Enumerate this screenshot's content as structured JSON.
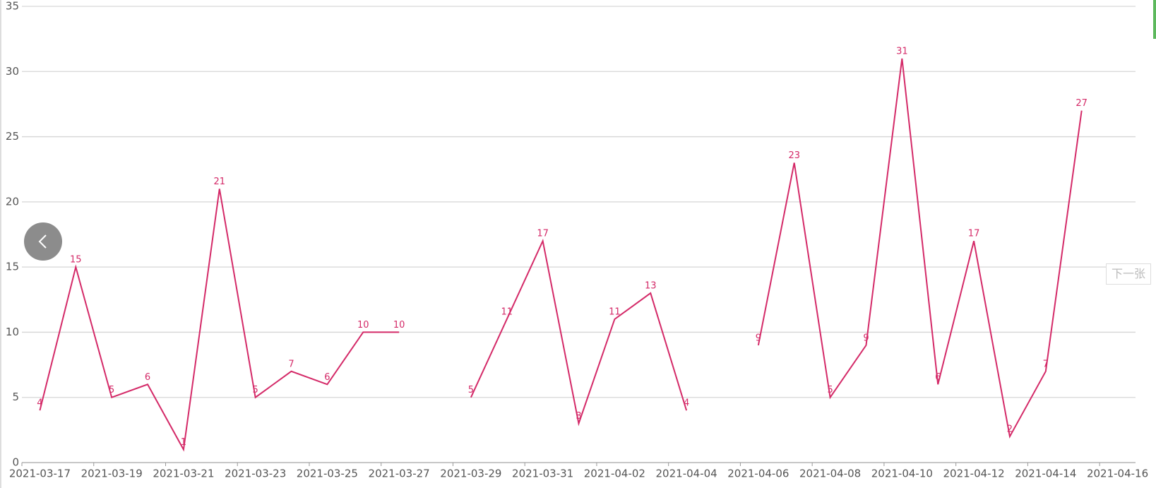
{
  "chart_data": {
    "type": "line",
    "categories": [
      "2021-03-17",
      null,
      "2021-03-19",
      null,
      "2021-03-21",
      null,
      "2021-03-23",
      null,
      "2021-03-25",
      null,
      "2021-03-27",
      null,
      "2021-03-29",
      null,
      "2021-03-31",
      null,
      "2021-04-02",
      null,
      "2021-04-04",
      null,
      "2021-04-06",
      null,
      "2021-04-08",
      null,
      "2021-04-10",
      null,
      "2021-04-12",
      null,
      "2021-04-14",
      null,
      "2021-04-16"
    ],
    "values": [
      4,
      15,
      5,
      6,
      1,
      21,
      5,
      7,
      6,
      10,
      10,
      null,
      5,
      11,
      17,
      3,
      11,
      13,
      4,
      null,
      9,
      23,
      5,
      9,
      31,
      6,
      17,
      2,
      7,
      27,
      null
    ],
    "color": "#d42a68",
    "ylim": [
      0,
      35
    ],
    "yticks": [
      0,
      5,
      10,
      15,
      20,
      25,
      30,
      35
    ],
    "grid": true
  },
  "ui": {
    "next_button": "下一张"
  }
}
